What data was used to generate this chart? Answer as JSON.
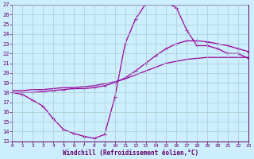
{
  "xlabel": "Windchill (Refroidissement éolien,°C)",
  "background_color": "#cceeff",
  "grid_color": "#aacccc",
  "line_color": "#990099",
  "xlim": [
    0,
    23
  ],
  "ylim": [
    13,
    27
  ],
  "yticks": [
    13,
    14,
    15,
    16,
    17,
    18,
    19,
    20,
    21,
    22,
    23,
    24,
    25,
    26,
    27
  ],
  "xticks": [
    0,
    1,
    2,
    3,
    4,
    5,
    6,
    7,
    8,
    9,
    10,
    11,
    12,
    13,
    14,
    15,
    16,
    17,
    18,
    19,
    20,
    21,
    22,
    23
  ],
  "hours": [
    0,
    1,
    2,
    3,
    4,
    5,
    6,
    7,
    8,
    9,
    10,
    11,
    12,
    13,
    14,
    15,
    16,
    17,
    18,
    19,
    20,
    21,
    22,
    23
  ],
  "curve_wc": [
    18.0,
    17.8,
    17.2,
    16.6,
    15.3,
    14.2,
    13.8,
    13.5,
    13.3,
    13.7,
    17.5,
    23.0,
    25.5,
    27.1,
    27.3,
    27.2,
    26.7,
    24.4,
    22.8,
    22.8,
    22.5,
    22.0,
    22.0,
    21.5
  ],
  "curve_feel": [
    18.0,
    18.0,
    18.0,
    18.1,
    18.2,
    18.3,
    18.4,
    18.4,
    18.5,
    18.7,
    19.0,
    19.5,
    20.2,
    21.0,
    21.8,
    22.5,
    23.0,
    23.3,
    23.3,
    23.2,
    23.0,
    22.8,
    22.5,
    22.2
  ],
  "curve_temp": [
    18.2,
    18.2,
    18.3,
    18.3,
    18.4,
    18.5,
    18.5,
    18.6,
    18.7,
    18.9,
    19.1,
    19.4,
    19.8,
    20.2,
    20.6,
    21.0,
    21.2,
    21.4,
    21.5,
    21.6,
    21.6,
    21.6,
    21.6,
    21.6
  ]
}
